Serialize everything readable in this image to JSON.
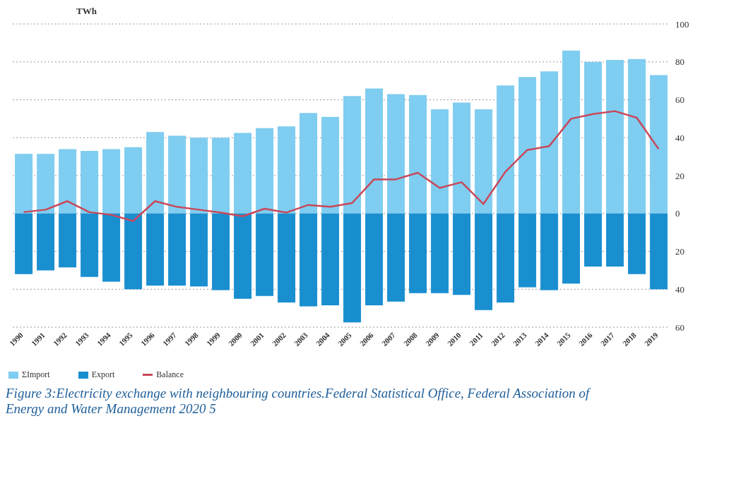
{
  "chart_data": {
    "type": "bar",
    "ylabel": "TWh",
    "categories": [
      "1990",
      "1991",
      "1992",
      "1993",
      "1994",
      "1995",
      "1996",
      "1997",
      "1998",
      "1999",
      "2000",
      "2001",
      "2002",
      "2003",
      "2004",
      "2005",
      "2006",
      "2007",
      "2008",
      "2009",
      "2010",
      "2011",
      "2012",
      "2013",
      "2014",
      "2015",
      "2016",
      "2017",
      "2018",
      "2019"
    ],
    "series": [
      {
        "name": "ΣImport",
        "color": "#7fcdf0",
        "values": [
          31.4,
          31.4,
          34,
          33,
          34,
          35,
          43,
          41,
          40,
          40,
          42.5,
          45,
          46,
          53,
          51,
          62,
          66,
          63,
          62.5,
          55,
          58.5,
          55,
          67.5,
          72,
          75,
          86,
          80,
          81,
          81.5,
          73
        ]
      },
      {
        "name": "Export",
        "color": "#1a8fd0",
        "values": [
          -32,
          -30,
          -28.5,
          -33.5,
          -36,
          -40,
          -38,
          -38,
          -38.5,
          -40.5,
          -45,
          -43.5,
          -47,
          -49,
          -48.5,
          -57.5,
          -48.5,
          -46.5,
          -42,
          -42,
          -43,
          -51,
          -47,
          -39,
          -40.5,
          -37,
          -28,
          -28,
          -32,
          -40
        ]
      },
      {
        "name": "Balance",
        "type": "line",
        "color": "#c8485a",
        "values": [
          0.7,
          2,
          6.5,
          0.7,
          -0.7,
          -4,
          6.5,
          3.5,
          2,
          0.5,
          -1.5,
          2.5,
          0.5,
          4.5,
          3.5,
          5.5,
          18,
          18,
          21.5,
          13.5,
          16.5,
          5,
          22,
          33.5,
          35.5,
          50,
          52.5,
          54,
          50.5,
          34
        ]
      }
    ],
    "stacked": true,
    "ylim": [
      -60,
      100
    ],
    "yticks": [
      {
        "value": -60,
        "label": "60"
      },
      {
        "value": -40,
        "label": "40"
      },
      {
        "value": -20,
        "label": "20"
      },
      0,
      20,
      40,
      60,
      80,
      100
    ],
    "grid": "y",
    "legend": "bottom left",
    "annotations": [
      "Figure 3:Electricity exchange with neighbouring countries.Federal Statistical Office, Federal Association of Energy and Water Management 2020 5"
    ]
  }
}
